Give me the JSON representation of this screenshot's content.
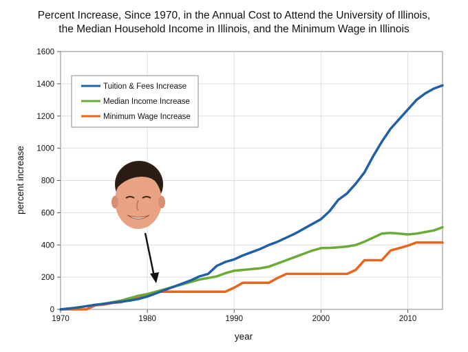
{
  "chart_data": {
    "type": "line",
    "title": [
      "Percent Increase, Since 1970, in the Annual Cost to Attend the University of Illinois,",
      "the Median Household Income in Illinois, and the Minimum Wage in Illinois"
    ],
    "xlabel": "year",
    "ylabel": "percent increase",
    "xlim": [
      1970,
      2014
    ],
    "ylim": [
      0,
      1600
    ],
    "xticks": [
      1970,
      1980,
      1990,
      2000,
      2010
    ],
    "yticks": [
      0,
      200,
      400,
      600,
      800,
      1000,
      1200,
      1400,
      1600
    ],
    "grid": true,
    "legend_position": "top-left",
    "annotation": "photo of a smiling man with an arrow pointing at 1981",
    "annotation_x": 1981,
    "series": [
      {
        "name": "Tuition & Fees Increase",
        "color": "#1f5fa8",
        "x": [
          1970,
          1971,
          1972,
          1973,
          1974,
          1975,
          1976,
          1977,
          1978,
          1979,
          1980,
          1981,
          1982,
          1983,
          1984,
          1985,
          1986,
          1987,
          1988,
          1989,
          1990,
          1991,
          1992,
          1993,
          1994,
          1995,
          1996,
          1997,
          1998,
          1999,
          2000,
          2001,
          2002,
          2003,
          2004,
          2005,
          2006,
          2007,
          2008,
          2009,
          2010,
          2011,
          2012,
          2013,
          2014
        ],
        "values": [
          0,
          5,
          12,
          20,
          28,
          35,
          42,
          48,
          55,
          65,
          80,
          100,
          120,
          140,
          160,
          180,
          205,
          220,
          270,
          295,
          310,
          335,
          355,
          375,
          400,
          420,
          445,
          470,
          500,
          530,
          560,
          610,
          680,
          720,
          780,
          850,
          950,
          1040,
          1120,
          1180,
          1240,
          1300,
          1340,
          1370,
          1390
        ]
      },
      {
        "name": "Median Income Increase",
        "color": "#6aab35",
        "x": [
          1970,
          1971,
          1972,
          1973,
          1974,
          1975,
          1976,
          1977,
          1978,
          1979,
          1980,
          1981,
          1982,
          1983,
          1984,
          1985,
          1986,
          1987,
          1988,
          1989,
          1990,
          1991,
          1992,
          1993,
          1994,
          1995,
          1996,
          1997,
          1998,
          1999,
          2000,
          2001,
          2002,
          2003,
          2004,
          2005,
          2006,
          2007,
          2008,
          2009,
          2010,
          2011,
          2012,
          2013,
          2014
        ],
        "values": [
          0,
          6,
          12,
          20,
          28,
          35,
          45,
          55,
          70,
          85,
          95,
          110,
          125,
          140,
          155,
          170,
          185,
          195,
          205,
          225,
          240,
          245,
          250,
          255,
          265,
          285,
          305,
          325,
          345,
          365,
          380,
          382,
          385,
          390,
          400,
          420,
          445,
          470,
          475,
          470,
          465,
          470,
          480,
          490,
          510
        ]
      },
      {
        "name": "Minimum Wage Increase",
        "color": "#e8651e",
        "x": [
          1970,
          1971,
          1972,
          1973,
          1974,
          1975,
          1976,
          1977,
          1978,
          1979,
          1980,
          1981,
          1982,
          1983,
          1984,
          1985,
          1986,
          1987,
          1988,
          1989,
          1990,
          1991,
          1992,
          1993,
          1994,
          1995,
          1996,
          1997,
          1998,
          1999,
          2000,
          2001,
          2002,
          2003,
          2004,
          2005,
          2006,
          2007,
          2008,
          2009,
          2010,
          2011,
          2012,
          2013,
          2014
        ],
        "values": [
          0,
          0,
          0,
          0,
          25,
          30,
          40,
          45,
          60,
          75,
          90,
          110,
          110,
          110,
          110,
          110,
          110,
          110,
          110,
          110,
          135,
          165,
          165,
          165,
          165,
          195,
          220,
          220,
          220,
          220,
          220,
          220,
          220,
          220,
          245,
          305,
          305,
          305,
          365,
          380,
          395,
          415,
          415,
          415,
          415
        ]
      }
    ]
  }
}
